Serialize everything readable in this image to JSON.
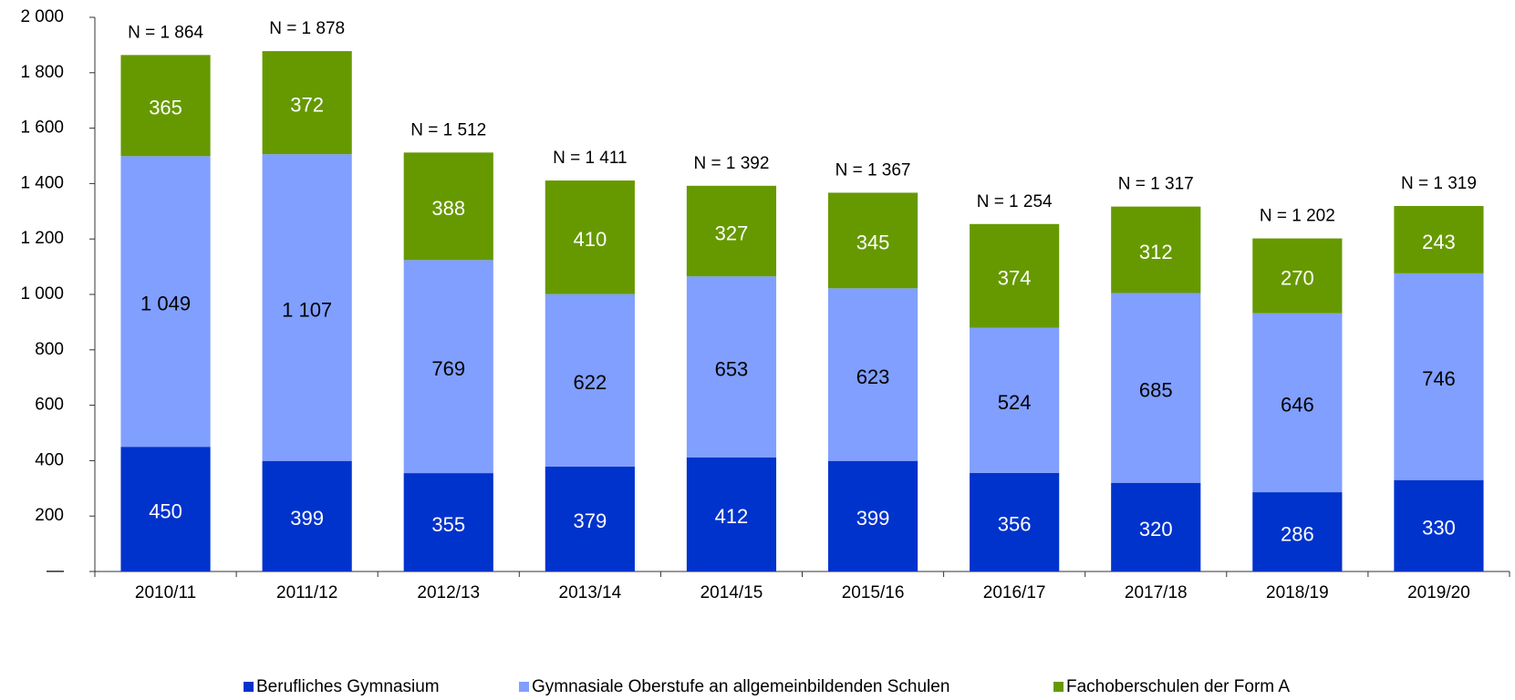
{
  "chart_data": {
    "type": "stacked-bar",
    "categories": [
      "2010/11",
      "2011/12",
      "2012/13",
      "2013/14",
      "2014/15",
      "2015/16",
      "2016/17",
      "2017/18",
      "2018/19",
      "2019/20"
    ],
    "series": [
      {
        "name": "Berufliches Gymnasium",
        "color": "#0033cc",
        "label_color": "#ffffff",
        "values": [
          450,
          399,
          355,
          379,
          412,
          399,
          356,
          320,
          286,
          330
        ]
      },
      {
        "name": "Gymnasiale Oberstufe an allgemeinbildenden Schulen",
        "color": "#809fff",
        "label_color": "#000000",
        "values": [
          1049,
          1107,
          769,
          622,
          653,
          623,
          524,
          685,
          646,
          746
        ],
        "value_labels": [
          "1 049",
          "1 107",
          "769",
          "622",
          "653",
          "623",
          "524",
          "685",
          "646",
          "746"
        ]
      },
      {
        "name": "Fachoberschulen der Form A",
        "color": "#669900",
        "label_color": "#ffffff",
        "values": [
          365,
          372,
          388,
          410,
          327,
          345,
          374,
          312,
          270,
          243
        ]
      }
    ],
    "totals": [
      1864,
      1878,
      1512,
      1411,
      1392,
      1367,
      1254,
      1317,
      1202,
      1319
    ],
    "total_labels": [
      "N = 1 864",
      "N = 1 878",
      "N = 1 512",
      "N = 1 411",
      "N = 1 392",
      "N = 1 367",
      "N = 1 254",
      "N = 1 317",
      "N = 1 202",
      "N = 1 319"
    ],
    "ylim": [
      0,
      2000
    ],
    "yticks": [
      {
        "value": 0,
        "label": "—"
      },
      200,
      400,
      600,
      800,
      {
        "value": 1000,
        "label": "1 000"
      },
      {
        "value": 1200,
        "label": "1 200"
      },
      {
        "value": 1400,
        "label": "1 400"
      },
      {
        "value": 1600,
        "label": "1 600"
      },
      {
        "value": 1800,
        "label": "1 800"
      },
      {
        "value": 2000,
        "label": "2 000"
      }
    ],
    "grid": false,
    "legend": "bottom"
  }
}
